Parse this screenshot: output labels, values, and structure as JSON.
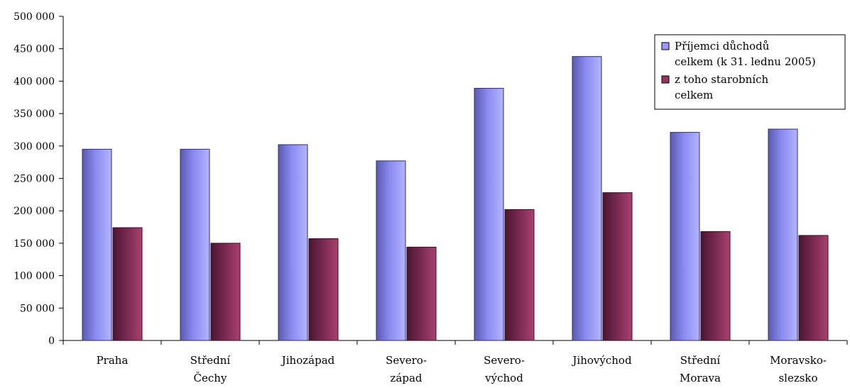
{
  "chart_data": {
    "type": "bar",
    "title": "",
    "xlabel": "",
    "ylabel": "",
    "categories": [
      [
        "Praha"
      ],
      [
        "Střední",
        "Čechy"
      ],
      [
        "Jihozápad"
      ],
      [
        "Severo-",
        "západ"
      ],
      [
        "Severo-",
        "východ"
      ],
      [
        "Jihovýchod"
      ],
      [
        "Střední",
        "Morava"
      ],
      [
        "Moravsko-",
        "slezsko"
      ]
    ],
    "series": [
      {
        "name": [
          "Příjemci důchodů",
          "celkem (k 31. lednu 2005)"
        ],
        "color": "#9999ff",
        "values": [
          295000,
          295000,
          302000,
          277000,
          389000,
          438000,
          321000,
          326000
        ]
      },
      {
        "name": [
          "z toho starobních",
          "celkem"
        ],
        "color": "#993366",
        "values": [
          174000,
          150000,
          157000,
          144000,
          202000,
          228000,
          168000,
          162000
        ]
      }
    ],
    "ylim": [
      0,
      500000
    ],
    "yticks": [
      0,
      50000,
      100000,
      150000,
      200000,
      250000,
      300000,
      350000,
      400000,
      450000,
      500000
    ],
    "ytick_labels": [
      "0",
      "50 000",
      "100 000",
      "150 000",
      "200 000",
      "250 000",
      "300 000",
      "350 000",
      "400 000",
      "450 000",
      "500 000"
    ],
    "grid": false,
    "legend_position": "top-right"
  }
}
